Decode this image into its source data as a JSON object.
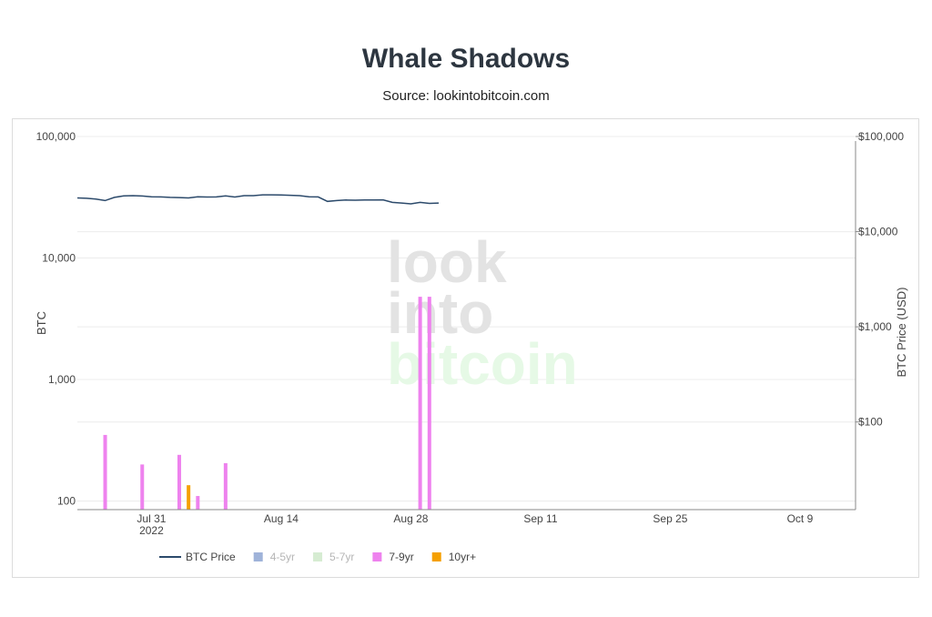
{
  "header": {
    "title": "Whale Shadows",
    "subtitle": "Source: lookintobitcoin.com"
  },
  "watermark": {
    "lines": [
      "look",
      "into",
      "bitcoin"
    ],
    "colors": [
      "#e3e3e3",
      "#e3e3e3",
      "#e6f9e6"
    ]
  },
  "chart_data": {
    "type": "bar",
    "title": "Whale Shadows",
    "subtitle": "Source: lookintobitcoin.com",
    "y_left": {
      "label": "BTC",
      "scale": "log",
      "range": [
        85,
        100000
      ],
      "tick_labels": [
        "100",
        "1,000",
        "10,000",
        "100,000"
      ],
      "tick_values": [
        100,
        1000,
        10000,
        100000
      ]
    },
    "y_right": {
      "label": "BTC Price (USD)",
      "scale": "log",
      "range": [
        12,
        100000
      ],
      "tick_labels": [
        "$100",
        "$1,000",
        "$10,000",
        "$100,000"
      ],
      "tick_values": [
        100,
        1000,
        10000,
        100000
      ]
    },
    "x_axis": {
      "range": [
        "2022-07-23",
        "2022-10-15"
      ],
      "ticks": [
        {
          "date": "2022-07-31",
          "label": "Jul 31",
          "sublabel": "2022"
        },
        {
          "date": "2022-08-14",
          "label": "Aug 14",
          "sublabel": ""
        },
        {
          "date": "2022-08-28",
          "label": "Aug 28",
          "sublabel": ""
        },
        {
          "date": "2022-09-11",
          "label": "Sep 11",
          "sublabel": ""
        },
        {
          "date": "2022-09-25",
          "label": "Sep 25",
          "sublabel": ""
        },
        {
          "date": "2022-10-09",
          "label": "Oct 9",
          "sublabel": ""
        }
      ]
    },
    "grid": true,
    "legend_placement": "bottom",
    "series": [
      {
        "name": "BTC Price",
        "kind": "line",
        "axis": "right",
        "color": "#2c4a6b",
        "visible": true,
        "points": [
          [
            "2022-07-23",
            22600
          ],
          [
            "2022-07-24",
            22400
          ],
          [
            "2022-07-25",
            22000
          ],
          [
            "2022-07-26",
            21200
          ],
          [
            "2022-07-27",
            22900
          ],
          [
            "2022-07-28",
            23800
          ],
          [
            "2022-07-29",
            23900
          ],
          [
            "2022-07-30",
            23700
          ],
          [
            "2022-07-31",
            23300
          ],
          [
            "2022-08-01",
            23200
          ],
          [
            "2022-08-02",
            22900
          ],
          [
            "2022-08-03",
            22800
          ],
          [
            "2022-08-04",
            22600
          ],
          [
            "2022-08-05",
            23300
          ],
          [
            "2022-08-06",
            23100
          ],
          [
            "2022-08-07",
            23200
          ],
          [
            "2022-08-08",
            23800
          ],
          [
            "2022-08-09",
            23100
          ],
          [
            "2022-08-10",
            23900
          ],
          [
            "2022-08-11",
            23900
          ],
          [
            "2022-08-12",
            24400
          ],
          [
            "2022-08-13",
            24400
          ],
          [
            "2022-08-14",
            24300
          ],
          [
            "2022-08-15",
            24100
          ],
          [
            "2022-08-16",
            23900
          ],
          [
            "2022-08-17",
            23300
          ],
          [
            "2022-08-18",
            23200
          ],
          [
            "2022-08-19",
            20800
          ],
          [
            "2022-08-20",
            21200
          ],
          [
            "2022-08-21",
            21500
          ],
          [
            "2022-08-22",
            21400
          ],
          [
            "2022-08-23",
            21500
          ],
          [
            "2022-08-24",
            21500
          ],
          [
            "2022-08-25",
            21600
          ],
          [
            "2022-08-26",
            20300
          ],
          [
            "2022-08-27",
            20000
          ],
          [
            "2022-08-28",
            19600
          ],
          [
            "2022-08-29",
            20300
          ],
          [
            "2022-08-30",
            19800
          ],
          [
            "2022-08-31",
            20000
          ]
        ]
      },
      {
        "name": "4-5yr",
        "kind": "bar",
        "axis": "left",
        "color": "#9fb3d9",
        "visible": false,
        "points": []
      },
      {
        "name": "5-7yr",
        "kind": "bar",
        "axis": "left",
        "color": "#d6ecd2",
        "visible": false,
        "points": []
      },
      {
        "name": "7-9yr",
        "kind": "bar",
        "axis": "left",
        "color": "#ee82ee",
        "visible": true,
        "points": [
          [
            "2022-07-26",
            350
          ],
          [
            "2022-07-30",
            200
          ],
          [
            "2022-08-03",
            240
          ],
          [
            "2022-08-05",
            110
          ],
          [
            "2022-08-08",
            205
          ],
          [
            "2022-08-29",
            4800
          ],
          [
            "2022-08-30",
            4800
          ]
        ]
      },
      {
        "name": "10yr+",
        "kind": "bar",
        "axis": "left",
        "color": "#f5a000",
        "visible": true,
        "points": [
          [
            "2022-08-04",
            135
          ]
        ]
      }
    ]
  }
}
